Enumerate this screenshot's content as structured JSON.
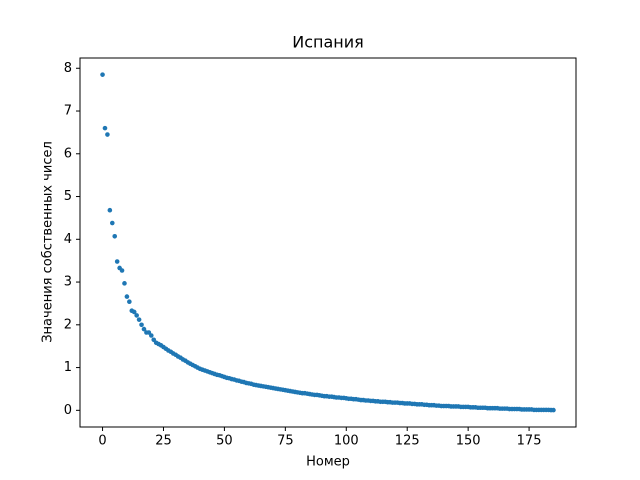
{
  "chart_data": {
    "type": "scatter",
    "title": "Испания",
    "x_label": "Номер",
    "y_label": "Значения собственных чисел",
    "color": "#1f77b4",
    "xlim": [
      -9.25,
      194.25
    ],
    "ylim": [
      -0.39,
      8.24
    ],
    "xticks": [
      0,
      25,
      50,
      75,
      100,
      125,
      150,
      175
    ],
    "yticks": [
      0,
      1,
      2,
      3,
      4,
      5,
      6,
      7,
      8
    ],
    "x": [
      0,
      1,
      2,
      3,
      4,
      5,
      6,
      7,
      8,
      9,
      10,
      11,
      12,
      13,
      14,
      15,
      16,
      17,
      18,
      19,
      20,
      21,
      22,
      23,
      24,
      25,
      26,
      27,
      28,
      29,
      30,
      31,
      32,
      33,
      34,
      35,
      36,
      37,
      38,
      39,
      40,
      41,
      42,
      43,
      44,
      45,
      46,
      47,
      48,
      49,
      50,
      51,
      52,
      53,
      54,
      55,
      56,
      57,
      58,
      59,
      60,
      61,
      62,
      63,
      64,
      65,
      66,
      67,
      68,
      69,
      70,
      71,
      72,
      73,
      74,
      75,
      76,
      77,
      78,
      79,
      80,
      81,
      82,
      83,
      84,
      85,
      86,
      87,
      88,
      89,
      90,
      91,
      92,
      93,
      94,
      95,
      96,
      97,
      98,
      99,
      100,
      101,
      102,
      103,
      104,
      105,
      106,
      107,
      108,
      109,
      110,
      111,
      112,
      113,
      114,
      115,
      116,
      117,
      118,
      119,
      120,
      121,
      122,
      123,
      124,
      125,
      126,
      127,
      128,
      129,
      130,
      131,
      132,
      133,
      134,
      135,
      136,
      137,
      138,
      139,
      140,
      141,
      142,
      143,
      144,
      145,
      146,
      147,
      148,
      149,
      150,
      151,
      152,
      153,
      154,
      155,
      156,
      157,
      158,
      159,
      160,
      161,
      162,
      163,
      164,
      165,
      166,
      167,
      168,
      169,
      170,
      171,
      172,
      173,
      174,
      175,
      176,
      177,
      178,
      179,
      180,
      181,
      182,
      183,
      184,
      185
    ],
    "values": [
      7.85,
      6.6,
      6.45,
      4.68,
      4.38,
      4.07,
      3.48,
      3.33,
      3.27,
      2.97,
      2.66,
      2.54,
      2.33,
      2.3,
      2.22,
      2.12,
      2.0,
      1.9,
      1.82,
      1.82,
      1.75,
      1.65,
      1.58,
      1.55,
      1.52,
      1.48,
      1.44,
      1.4,
      1.37,
      1.33,
      1.3,
      1.26,
      1.23,
      1.19,
      1.16,
      1.12,
      1.09,
      1.06,
      1.03,
      1.0,
      0.97,
      0.95,
      0.93,
      0.91,
      0.89,
      0.87,
      0.85,
      0.83,
      0.82,
      0.8,
      0.78,
      0.76,
      0.75,
      0.73,
      0.72,
      0.7,
      0.69,
      0.67,
      0.66,
      0.64,
      0.63,
      0.62,
      0.6,
      0.59,
      0.58,
      0.57,
      0.56,
      0.55,
      0.54,
      0.53,
      0.52,
      0.51,
      0.5,
      0.49,
      0.48,
      0.47,
      0.46,
      0.45,
      0.44,
      0.43,
      0.42,
      0.41,
      0.4,
      0.4,
      0.39,
      0.38,
      0.37,
      0.36,
      0.36,
      0.35,
      0.34,
      0.33,
      0.33,
      0.32,
      0.32,
      0.31,
      0.3,
      0.3,
      0.29,
      0.29,
      0.28,
      0.27,
      0.27,
      0.26,
      0.26,
      0.25,
      0.24,
      0.24,
      0.23,
      0.23,
      0.22,
      0.22,
      0.21,
      0.21,
      0.2,
      0.2,
      0.2,
      0.19,
      0.19,
      0.18,
      0.18,
      0.18,
      0.17,
      0.17,
      0.16,
      0.16,
      0.16,
      0.15,
      0.15,
      0.14,
      0.14,
      0.14,
      0.13,
      0.13,
      0.12,
      0.12,
      0.12,
      0.11,
      0.11,
      0.1,
      0.1,
      0.1,
      0.1,
      0.09,
      0.09,
      0.09,
      0.09,
      0.08,
      0.08,
      0.08,
      0.08,
      0.07,
      0.07,
      0.07,
      0.06,
      0.06,
      0.06,
      0.06,
      0.05,
      0.05,
      0.05,
      0.05,
      0.05,
      0.04,
      0.04,
      0.04,
      0.04,
      0.03,
      0.03,
      0.03,
      0.03,
      0.03,
      0.02,
      0.02,
      0.02,
      0.02,
      0.02,
      0.01,
      0.01,
      0.01,
      0.01,
      0.01,
      0.01,
      0.01,
      0.005,
      0.005
    ]
  }
}
